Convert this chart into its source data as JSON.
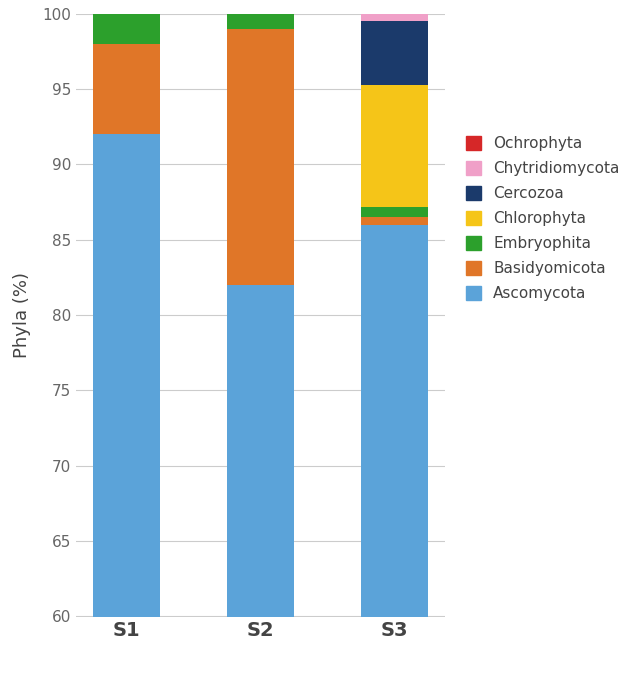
{
  "categories": [
    "S1",
    "S2",
    "S3"
  ],
  "series": [
    {
      "name": "Ascomycota",
      "color": "#5BA3D9",
      "values": [
        92.0,
        82.0,
        86.0
      ]
    },
    {
      "name": "Basidyomicota",
      "color": "#E07628",
      "values": [
        6.0,
        17.0,
        0.5
      ]
    },
    {
      "name": "Embryophita",
      "color": "#2CA02C",
      "values": [
        2.0,
        1.0,
        0.7
      ]
    },
    {
      "name": "Chlorophyta",
      "color": "#F5C518",
      "values": [
        0.0,
        0.0,
        8.1
      ]
    },
    {
      "name": "Cercozoa",
      "color": "#1B3A6B",
      "values": [
        0.0,
        0.0,
        4.2
      ]
    },
    {
      "name": "Chytridiomycota",
      "color": "#F0A0C8",
      "values": [
        0.0,
        0.0,
        0.7
      ]
    },
    {
      "name": "Ochrophyta",
      "color": "#D62728",
      "values": [
        0.0,
        0.0,
        0.5
      ]
    }
  ],
  "ylim": [
    60,
    100
  ],
  "yticks": [
    60,
    65,
    70,
    75,
    80,
    85,
    90,
    95,
    100
  ],
  "ylabel": "Phyla (%)",
  "bar_width": 0.5,
  "background_color": "#FFFFFF",
  "grid_color": "#CCCCCC",
  "tick_label_color": "#666666",
  "axis_label_color": "#444444"
}
